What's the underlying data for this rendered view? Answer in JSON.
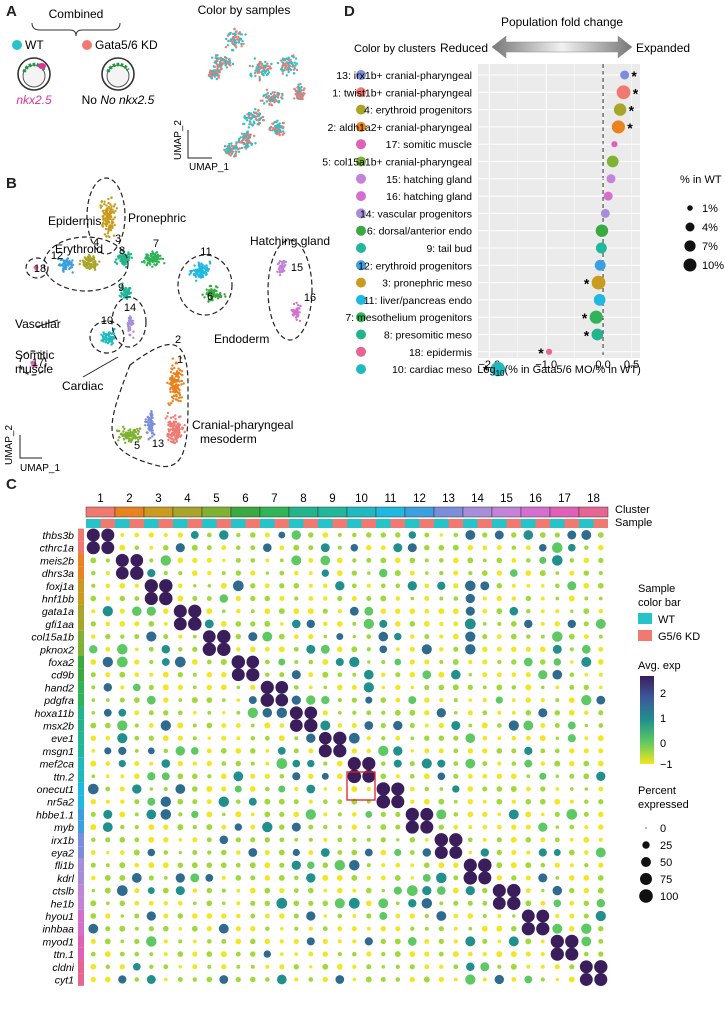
{
  "panels": {
    "A": {
      "letter": "A",
      "combined_label": "Combined",
      "legend": [
        {
          "label": "WT",
          "color": "#26c3c9"
        },
        {
          "label": "Gata5/6 KD",
          "color": "#f07a72"
        }
      ],
      "embryo_captions": [
        "nkx2.5",
        "No nkx2.5"
      ],
      "embryo_caption_color": "#e0309c",
      "umap_title": "Color by samples",
      "axis_x": "UMAP_1",
      "axis_y": "UMAP_2"
    },
    "B": {
      "letter": "B",
      "axis_x": "UMAP_1",
      "axis_y": "UMAP_2",
      "region_labels": [
        "Epidermis",
        "Erythroid",
        "Pronephric",
        "Hatching gland",
        "Vascular",
        "Endoderm",
        "Somitic muscle",
        "Cardiac",
        "Cranial-pharyngeal mesoderm"
      ],
      "cluster_numbers": [
        "18",
        "12",
        "4",
        "3",
        "8",
        "7",
        "11",
        "15",
        "16",
        "9",
        "14",
        "6",
        "17",
        "10",
        "2",
        "5",
        "13",
        "1"
      ]
    },
    "C": {
      "letter": "C",
      "cluster_bar_label": "Cluster",
      "sample_bar_label": "Sample",
      "clusters": [
        "1",
        "2",
        "3",
        "4",
        "5",
        "6",
        "7",
        "8",
        "9",
        "10",
        "11",
        "12",
        "13",
        "14",
        "15",
        "16",
        "17",
        "18"
      ],
      "genes": [
        "thbs3b",
        "cthrc1a",
        "meis2b",
        "dhrs3a",
        "foxj1a",
        "hnf1bb",
        "gata1a",
        "gfi1aa",
        "col15a1b",
        "pknox2",
        "foxa2",
        "cd9b",
        "hand2",
        "pdgfra",
        "hoxa11b",
        "msx2b",
        "eve1",
        "msgn1",
        "mef2ca",
        "ttn.2",
        "onecut1",
        "nr5a2",
        "hbbe1.1",
        "myb",
        "irx1b",
        "eya2",
        "fli1b",
        "kdrl",
        "ctslb",
        "he1b",
        "hyou1",
        "inhbaa",
        "myod1",
        "ttn.1",
        "cldni",
        "cyt1"
      ],
      "legend_sample_title": "Sample color bar",
      "legend_sample": [
        {
          "label": "WT",
          "color": "#26c3c9"
        },
        {
          "label": "G5/6 KD",
          "color": "#f07a72"
        }
      ],
      "legend_avg_title": "Avg. exp",
      "avg_ticks": [
        "2",
        "1",
        "0",
        "−1"
      ],
      "legend_pct_title": "Percent expressed",
      "pct_ticks": [
        "0",
        "25",
        "50",
        "75",
        "100"
      ]
    },
    "D": {
      "letter": "D",
      "top_title": "Population fold change",
      "reduced_label": "Reduced",
      "expanded_label": "Expanded",
      "color_by_clusters": "Color by clusters",
      "xlabel": "Log10(% in Gata5/6 MO/% in WT)",
      "legend_title": "% in WT",
      "legend_sizes": [
        "1%",
        "4%",
        "7%",
        "10%"
      ]
    }
  },
  "cluster_colors": {
    "1": "#f07a72",
    "2": "#e8831f",
    "3": "#c99b1e",
    "4": "#a9a42a",
    "5": "#7fb132",
    "6": "#3aaa40",
    "7": "#2fb457",
    "8": "#22b58c",
    "9": "#20b79a",
    "10": "#21b9c0",
    "11": "#1fb8e0",
    "12": "#3c9fe0",
    "13": "#7c8ddc",
    "14": "#a88ed8",
    "15": "#c283d8",
    "16": "#d46fcf",
    "17": "#e05fb7",
    "18": "#e66592"
  },
  "chart_data": {
    "type": "scatter",
    "xlabel": "Log10(% in Gata5/6 MO/% in WT)",
    "xlim": [
      -2.2,
      0.65
    ],
    "xticks": [
      "−2.0",
      "−1.5",
      "−1.0",
      "−0.5",
      "0.0",
      "0.5"
    ],
    "rows": [
      {
        "label": "13: irx1b+ cranial-pharyngeal",
        "cluster": "13",
        "value": 0.38,
        "pct_wt": 3,
        "star": true
      },
      {
        "label": "1: twist1b+ cranial-pharyngeal",
        "cluster": "1",
        "value": 0.36,
        "pct_wt": 9,
        "star": true
      },
      {
        "label": "4: erythroid progenitors",
        "cluster": "4",
        "value": 0.3,
        "pct_wt": 7,
        "star": true
      },
      {
        "label": "2: aldh1a2+ cranial-pharyngeal",
        "cluster": "2",
        "value": 0.27,
        "pct_wt": 8,
        "star": true
      },
      {
        "label": "17: somitic muscle",
        "cluster": "17",
        "value": 0.2,
        "pct_wt": 1,
        "star": false
      },
      {
        "label": "5: col15a1b+ cranial-pharyngeal",
        "cluster": "5",
        "value": 0.17,
        "pct_wt": 6,
        "star": false
      },
      {
        "label": "15: hatching gland",
        "cluster": "15",
        "value": 0.14,
        "pct_wt": 3,
        "star": false
      },
      {
        "label": "16: hatching gland",
        "cluster": "16",
        "value": 0.09,
        "pct_wt": 3,
        "star": false
      },
      {
        "label": "14: vascular progenitors",
        "cluster": "14",
        "value": 0.04,
        "pct_wt": 3,
        "star": false
      },
      {
        "label": "6: dorsal/anterior endo",
        "cluster": "6",
        "value": -0.02,
        "pct_wt": 7,
        "star": false
      },
      {
        "label": "9: tail bud",
        "cluster": "9",
        "value": -0.03,
        "pct_wt": 5,
        "star": false
      },
      {
        "label": "12: erythroid progenitors",
        "cluster": "12",
        "value": -0.05,
        "pct_wt": 5,
        "star": false
      },
      {
        "label": "3: pronephric meso",
        "cluster": "3",
        "value": -0.08,
        "pct_wt": 9,
        "star": true
      },
      {
        "label": "11: liver/pancreas endo",
        "cluster": "11",
        "value": -0.06,
        "pct_wt": 6,
        "star": false
      },
      {
        "label": "7: mesothelium progenitors",
        "cluster": "7",
        "value": -0.12,
        "pct_wt": 8,
        "star": true
      },
      {
        "label": "8: presomitic meso",
        "cluster": "8",
        "value": -0.1,
        "pct_wt": 6,
        "star": true
      },
      {
        "label": "18: epidermis",
        "cluster": "18",
        "value": -0.95,
        "pct_wt": 1,
        "star": true
      },
      {
        "label": "10: cardiac meso",
        "cluster": "10",
        "value": -1.85,
        "pct_wt": 10,
        "star": true
      }
    ]
  }
}
